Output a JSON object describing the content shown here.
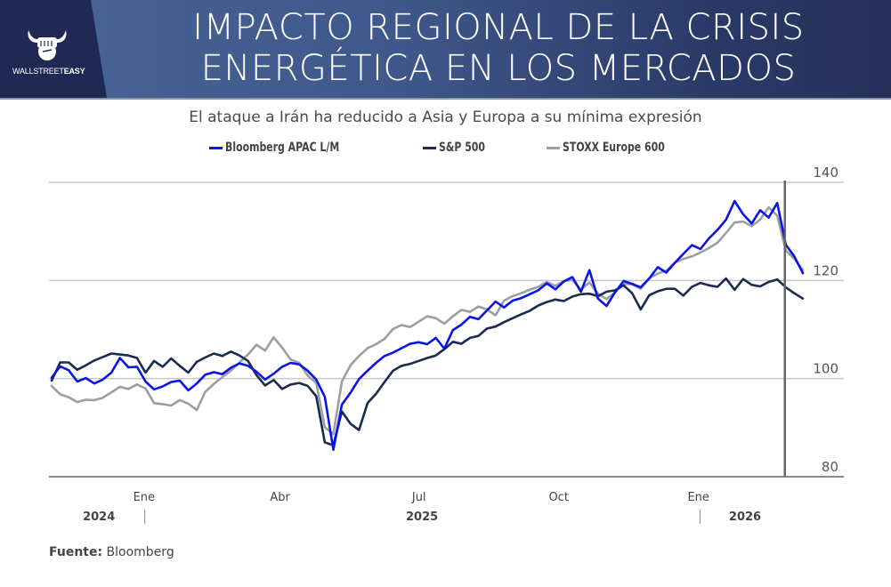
{
  "header": {
    "title_line1": "IMPACTO REGIONAL DE LA CRISIS",
    "title_line2": "ENERGÉTICA EN LOS MERCADOS",
    "logo": {
      "icon": "bull-fist-icon",
      "text_light": "WALLSTREET",
      "text_bold": "EASY"
    }
  },
  "source": {
    "label": "Fuente:",
    "value": "Bloomberg"
  },
  "chart_data": {
    "type": "line",
    "title": "El ataque a Irán ha reducido a Asia y Europa a su mínima expresión",
    "xlabel": "",
    "ylabel": "",
    "ylim": [
      80,
      140
    ],
    "yticks": [
      80,
      100,
      120,
      140
    ],
    "y_axis_position": "right",
    "grid": true,
    "legend_position": "top-center",
    "x_month_ticks": [
      {
        "label": "Ene",
        "t": 0.123
      },
      {
        "label": "Abr",
        "t": 0.304
      },
      {
        "label": "Jul",
        "t": 0.489
      },
      {
        "label": "Oct",
        "t": 0.675
      },
      {
        "label": "Ene",
        "t": 0.861
      }
    ],
    "x_year_labels": [
      {
        "label": "2024",
        "t": 0.063
      },
      {
        "label": "2025",
        "t": 0.493
      },
      {
        "label": "2026",
        "t": 0.923
      }
    ],
    "x_year_separators": [
      0.124,
      0.863
    ],
    "event_marker_t": 0.976,
    "x_range_t": [
      0.0,
      1.0
    ],
    "series": [
      {
        "name": "Bloomberg APAC L/M",
        "color": "#0a14e6",
        "values": [
          100.2,
          102.5,
          101.7,
          99.4,
          100.1,
          99.0,
          99.8,
          101.2,
          104.2,
          102.3,
          102.4,
          99.4,
          97.8,
          98.4,
          99.3,
          99.6,
          97.6,
          99.0,
          100.8,
          101.3,
          100.9,
          102.2,
          103.1,
          102.6,
          101.4,
          99.8,
          101.0,
          102.4,
          103.2,
          102.9,
          101.6,
          99.8,
          96.3,
          85.5,
          94.7,
          97.1,
          99.9,
          101.6,
          103.2,
          104.6,
          105.3,
          106.2,
          107.1,
          107.4,
          107.0,
          108.3,
          106.1,
          109.9,
          111.0,
          112.6,
          112.1,
          113.9,
          115.7,
          114.5,
          115.9,
          116.4,
          117.2,
          118.0,
          119.4,
          118.2,
          119.8,
          120.7,
          117.7,
          122.1,
          116.3,
          114.8,
          117.6,
          119.9,
          119.3,
          118.6,
          120.4,
          122.7,
          121.6,
          123.6,
          125.4,
          127.2,
          126.4,
          128.6,
          130.3,
          132.4,
          136.2,
          133.5,
          131.6,
          134.3,
          132.8,
          135.8,
          127.3,
          124.9,
          121.5
        ]
      },
      {
        "name": "S&P 500",
        "color": "#1c2a52",
        "values": [
          99.6,
          103.3,
          103.3,
          101.8,
          102.7,
          103.7,
          104.4,
          105.1,
          104.9,
          104.7,
          104.2,
          101.2,
          103.6,
          102.4,
          104.1,
          102.6,
          101.2,
          103.4,
          104.3,
          105.1,
          104.6,
          105.5,
          104.7,
          103.6,
          100.7,
          98.6,
          99.7,
          97.9,
          98.8,
          99.1,
          98.5,
          96.4,
          87.0,
          86.4,
          93.3,
          90.8,
          89.5,
          95.0,
          96.9,
          99.3,
          101.6,
          102.6,
          103.0,
          103.6,
          104.2,
          104.7,
          106.0,
          107.5,
          107.1,
          108.3,
          108.7,
          110.2,
          110.6,
          111.5,
          112.3,
          113.1,
          113.8,
          114.9,
          115.6,
          116.1,
          115.8,
          116.7,
          117.2,
          117.3,
          116.8,
          117.7,
          118.0,
          119.0,
          117.4,
          114.1,
          117.0,
          117.8,
          118.3,
          118.3,
          116.9,
          118.7,
          119.5,
          119.0,
          118.7,
          120.4,
          118.1,
          120.3,
          119.1,
          118.8,
          119.7,
          120.2,
          118.6,
          117.4,
          116.3
        ]
      },
      {
        "name": "STOXX Europe 600",
        "color": "#9b9ea4",
        "values": [
          98.5,
          96.8,
          96.2,
          95.2,
          95.7,
          95.6,
          96.1,
          97.2,
          98.3,
          97.9,
          98.8,
          98.0,
          95.0,
          94.8,
          94.5,
          95.6,
          94.9,
          93.6,
          97.3,
          98.9,
          100.3,
          101.6,
          103.3,
          104.9,
          106.9,
          105.7,
          108.4,
          106.3,
          103.9,
          103.2,
          100.6,
          99.1,
          90.1,
          88.7,
          99.4,
          102.7,
          104.6,
          106.2,
          107.0,
          108.1,
          110.1,
          110.9,
          110.5,
          111.6,
          112.7,
          112.3,
          111.2,
          112.7,
          114.0,
          113.6,
          114.7,
          114.1,
          112.9,
          115.9,
          116.8,
          117.4,
          118.1,
          118.7,
          119.7,
          118.9,
          119.9,
          120.1,
          118.1,
          119.6,
          117.3,
          116.2,
          117.6,
          119.3,
          119.2,
          118.3,
          120.5,
          121.4,
          122.0,
          123.6,
          124.4,
          124.9,
          125.7,
          126.6,
          127.7,
          129.7,
          131.8,
          132.0,
          131.1,
          132.4,
          134.9,
          133.2,
          126.1,
          124.4,
          122.1
        ]
      }
    ]
  }
}
